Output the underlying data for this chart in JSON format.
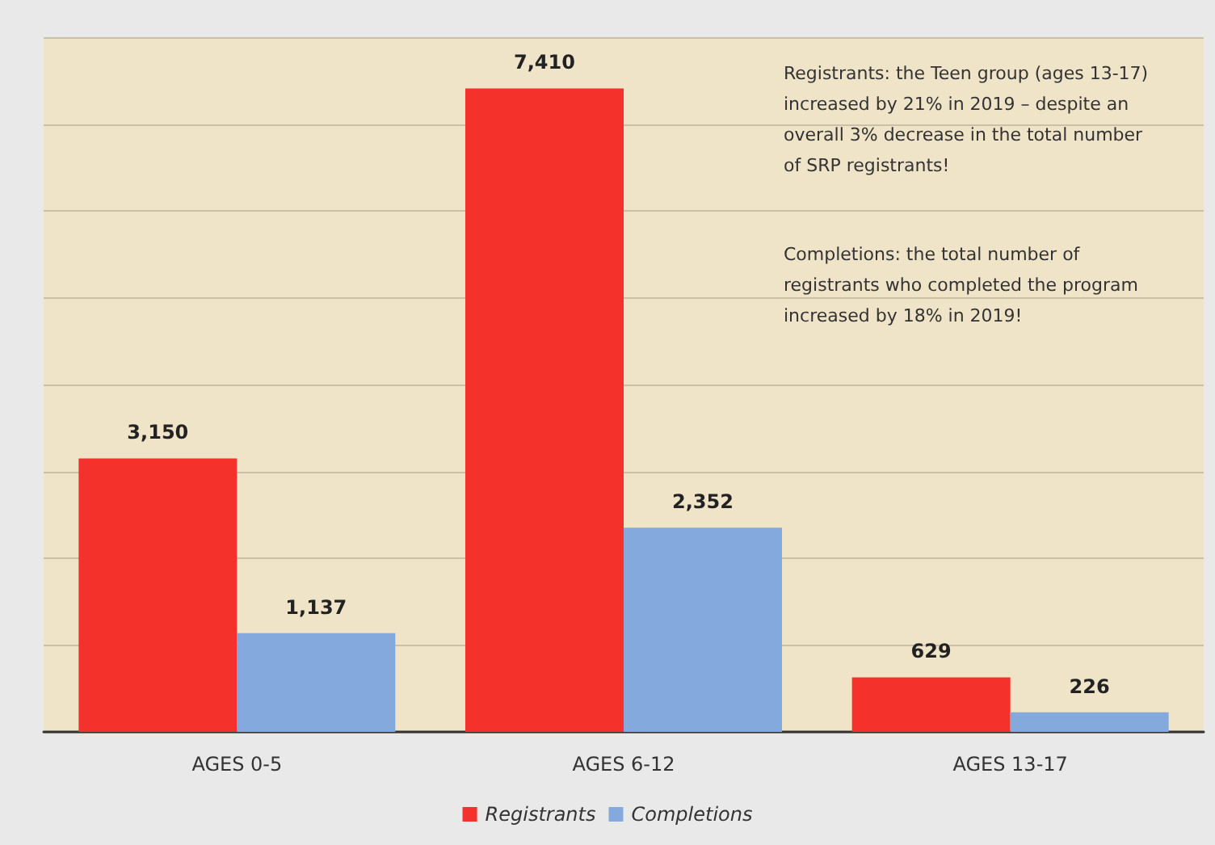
{
  "chart_data": {
    "type": "bar",
    "categories": [
      "AGES 0-5",
      "AGES 6-12",
      "AGES 13-17"
    ],
    "series": [
      {
        "name": "Registrants",
        "color": "#f5312c",
        "values": [
          3150,
          7410,
          629
        ],
        "value_labels": [
          "3,150",
          "7,410",
          "629"
        ]
      },
      {
        "name": "Completions",
        "color": "#84a9dc",
        "values": [
          1137,
          2352,
          226
        ],
        "value_labels": [
          "1,137",
          "2,352",
          "226"
        ]
      }
    ],
    "ylim": [
      0,
      8000
    ],
    "yticks": [
      {
        "value": 0,
        "label": null
      },
      {
        "value": 1000,
        "label": null
      },
      {
        "value": 2000,
        "label": null
      },
      {
        "value": 3000,
        "label": null
      },
      {
        "value": 4000,
        "label": null
      },
      {
        "value": 5000,
        "label": null
      },
      {
        "value": 6000,
        "label": null
      },
      {
        "value": 7000,
        "label": null
      },
      {
        "value": 8000,
        "label": null
      }
    ],
    "tick_labels": "x",
    "grid": "y",
    "legend": "bottom",
    "annotations": [
      "Registrants: the Teen group (ages 13-17) increased by 21% in 2019 – despite an overall 3% decrease in the total number of SRP registrants!",
      "Completions: the total number of registrants who completed the program increased by 18% in 2019!"
    ]
  }
}
